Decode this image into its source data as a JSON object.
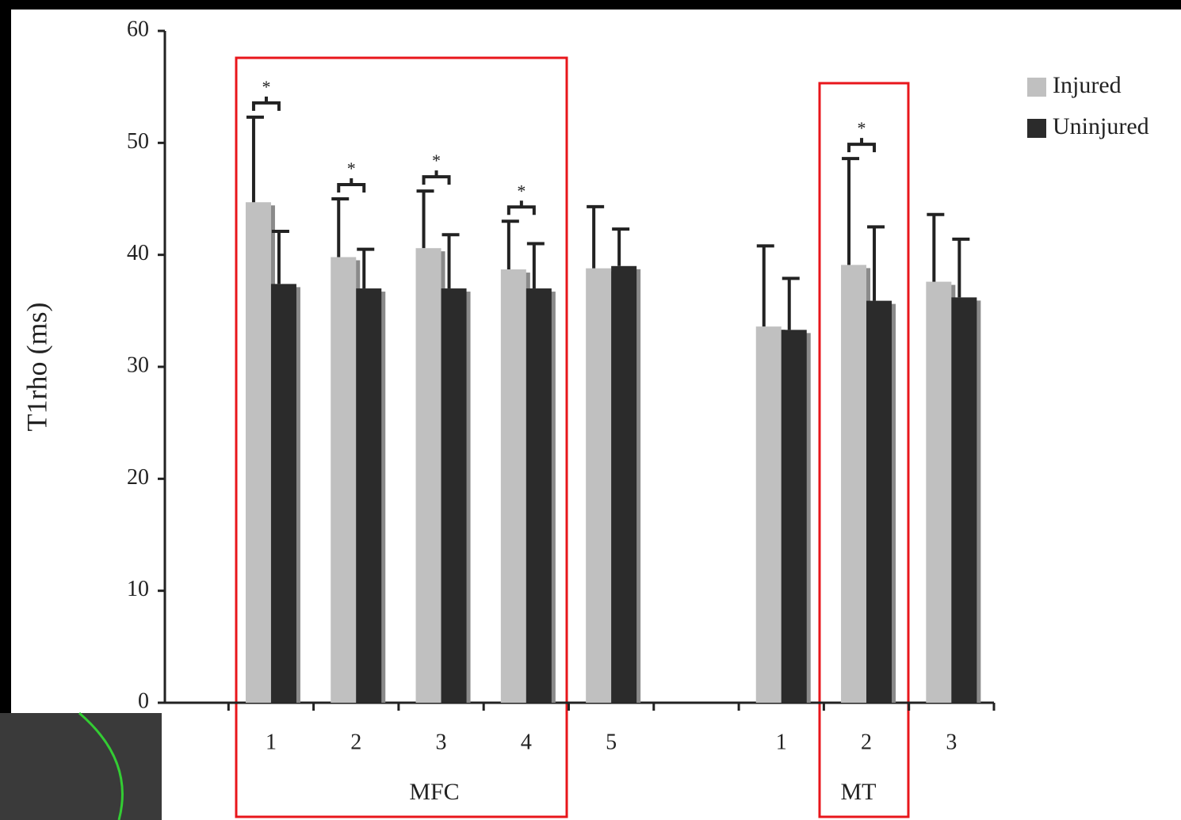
{
  "chart_data": {
    "type": "bar",
    "y_label": "T1rho (ms)",
    "categories": [
      null,
      "1",
      "2",
      "3",
      "4",
      "5",
      null,
      "1",
      "2",
      "3"
    ],
    "groups": [
      "MFC",
      "MT"
    ],
    "series": [
      {
        "name": "Injured",
        "color": "#c0c0c0",
        "values": [
          null,
          44.7,
          39.8,
          40.6,
          38.7,
          38.8,
          null,
          33.6,
          39.1,
          37.6
        ],
        "errors": [
          null,
          7.6,
          5.2,
          5.1,
          4.3,
          5.5,
          null,
          7.2,
          9.5,
          6.0
        ]
      },
      {
        "name": "Uninjured",
        "color": "#2b2b2b",
        "values": [
          null,
          37.4,
          37.0,
          37.0,
          37.0,
          39.0,
          null,
          33.3,
          35.9,
          36.2
        ],
        "errors": [
          null,
          4.7,
          3.5,
          4.8,
          4.0,
          3.3,
          null,
          4.6,
          6.6,
          5.2
        ]
      }
    ],
    "significance": [
      null,
      "*",
      "*",
      "*",
      "*",
      null,
      null,
      null,
      "*",
      null
    ],
    "ylim": [
      0,
      60
    ],
    "yticks": [
      0,
      10,
      20,
      30,
      40,
      50,
      60
    ]
  }
}
